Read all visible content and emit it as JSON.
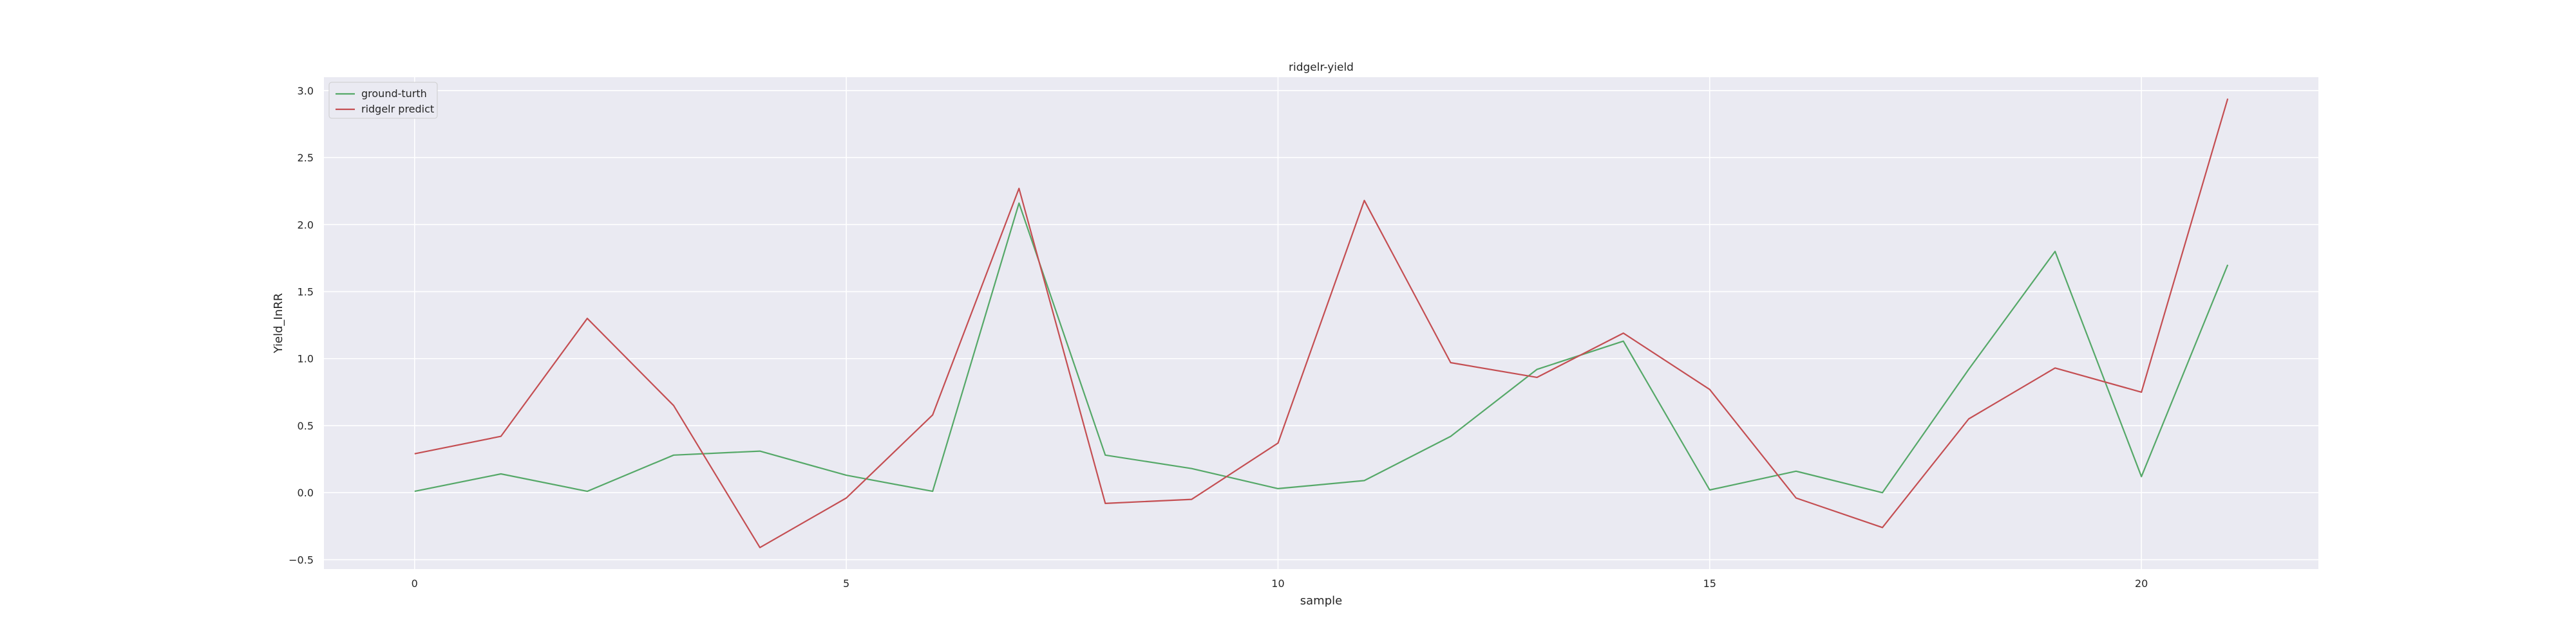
{
  "chart_data": {
    "type": "line",
    "title": "ridgelr-yield",
    "xlabel": "sample",
    "ylabel": "Yield_InRR",
    "x": [
      0,
      1,
      2,
      3,
      4,
      5,
      6,
      7,
      8,
      9,
      10,
      11,
      12,
      13,
      14,
      15,
      16,
      17,
      18,
      19,
      20,
      21
    ],
    "xlim": [
      -1.05,
      22.05
    ],
    "ylim": [
      -0.57,
      3.1
    ],
    "xticks": [
      0,
      5,
      10,
      15,
      20
    ],
    "xtick_labels": [
      "0",
      "5",
      "10",
      "15",
      "20"
    ],
    "yticks": [
      -0.5,
      0.0,
      0.5,
      1.0,
      1.5,
      2.0,
      2.5,
      3.0
    ],
    "ytick_labels": [
      "−0.5",
      "0.0",
      "0.5",
      "1.0",
      "1.5",
      "2.0",
      "2.5",
      "3.0"
    ],
    "grid": true,
    "legend_position": "upper-left",
    "series": [
      {
        "name": "ground-turth",
        "color": "#55a868",
        "values": [
          0.01,
          0.14,
          0.01,
          0.28,
          0.31,
          0.13,
          0.01,
          2.16,
          0.28,
          0.18,
          0.03,
          0.09,
          0.42,
          0.92,
          1.13,
          0.02,
          0.16,
          0.0,
          0.92,
          1.8,
          0.12,
          1.7
        ]
      },
      {
        "name": "ridgelr predict",
        "color": "#c44e52",
        "values": [
          0.29,
          0.42,
          1.3,
          0.65,
          -0.41,
          -0.04,
          0.58,
          2.27,
          -0.08,
          -0.05,
          0.37,
          2.18,
          0.97,
          0.86,
          1.19,
          0.77,
          -0.04,
          -0.26,
          0.55,
          0.93,
          0.75,
          2.94
        ]
      }
    ],
    "colors": {
      "axes_background": "#eaeaf2",
      "grid": "#ffffff",
      "text": "#262626"
    }
  }
}
